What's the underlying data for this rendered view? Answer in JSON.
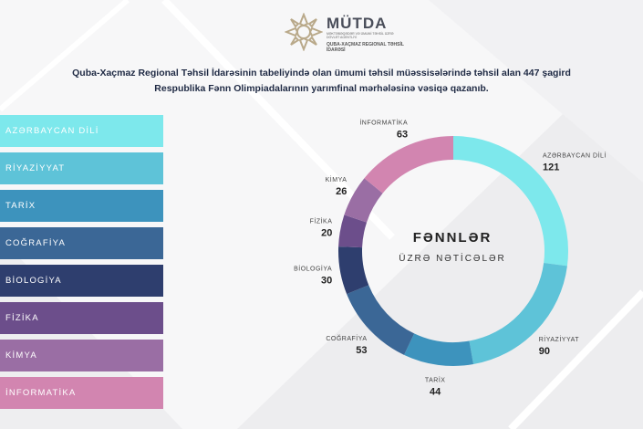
{
  "logo": {
    "name": "MÜTDA",
    "subtitle": "MƏKTƏBƏQƏDƏR VƏ ÜMUMİ TƏHSİL ÜZRƏ DÖVLƏT AGENTLİYİ",
    "region": "QUBA-XAÇMAZ REGIONAL TƏHSİL İDARƏSİ"
  },
  "headline": {
    "line1": "Quba-Xaçmaz Regional Təhsil İdarəsinin tabeliyində olan ümumi təhsil müəssisələrində təhsil alan 447 şagird",
    "line2": "Respublika Fənn Olimpiadalarının yarımfinal mərhələsinə vəsiqə qazanıb."
  },
  "center": {
    "title": "FƏNNLƏR",
    "subtitle": "ÜZRƏ NƏTİCƏLƏR"
  },
  "chart_data": {
    "type": "pie",
    "categories": [
      "AZƏRBAYCAN DİLİ",
      "RİYAZİYYAT",
      "TARİX",
      "COĞRAFİYA",
      "BİOLOGİYA",
      "FİZİKA",
      "KİMYA",
      "İNFORMATİKA"
    ],
    "values": [
      121,
      90,
      44,
      53,
      30,
      20,
      26,
      63
    ],
    "colors": [
      "#7de8ec",
      "#5ec3d8",
      "#3d93bd",
      "#3b6796",
      "#2e3e6e",
      "#6c4e8b",
      "#9a6ea4",
      "#d285b0"
    ],
    "legend_labels": [
      "AZƏRBAYCAN DİLİ",
      "RİYAZİYYAT",
      "TARİX",
      "COĞRAFİYA",
      "BİOLOGİYA",
      "FİZİKA",
      "KİMYA",
      "İNFORMATİKA"
    ]
  }
}
